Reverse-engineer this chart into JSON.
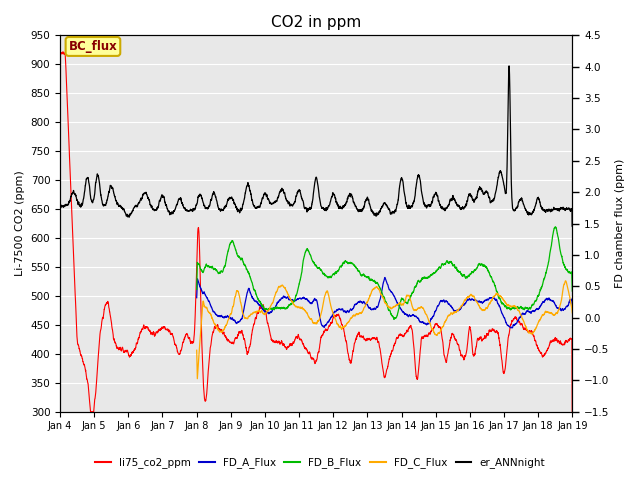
{
  "title": "CO2 in ppm",
  "ylabel_left": "Li-7500 CO2 (ppm)",
  "ylabel_right": "FD chamber flux (ppm)",
  "ylim_left": [
    300,
    950
  ],
  "ylim_right": [
    -1.5,
    4.5
  ],
  "yticks_left": [
    300,
    350,
    400,
    450,
    500,
    550,
    600,
    650,
    700,
    750,
    800,
    850,
    900,
    950
  ],
  "yticks_right": [
    -1.5,
    -1.0,
    -0.5,
    0.0,
    0.5,
    1.0,
    1.5,
    2.0,
    2.5,
    3.0,
    3.5,
    4.0,
    4.5
  ],
  "xtick_labels": [
    "Jan 4",
    "Jan 5",
    "Jan 6",
    "Jan 7",
    "Jan 8",
    "Jan 9",
    "Jan 10",
    "Jan 11",
    "Jan 12",
    "Jan 13",
    "Jan 14",
    "Jan 15",
    "Jan 16",
    "Jan 17",
    "Jan 18",
    "Jan 19"
  ],
  "legend_entries": [
    "li75_co2_ppm",
    "FD_A_Flux",
    "FD_B_Flux",
    "FD_C_Flux",
    "er_ANNnight"
  ],
  "legend_colors": [
    "#ff0000",
    "#0000cc",
    "#00bb00",
    "#ffaa00",
    "#000000"
  ],
  "bc_flux_box_color": "#ffff99",
  "bc_flux_border_color": "#ccaa00",
  "bc_flux_text": "BC_flux",
  "background_color": "#e8e8e8",
  "grid_color": "#ffffff",
  "title_fontsize": 11,
  "label_fontsize": 8,
  "tick_fontsize": 7.5
}
